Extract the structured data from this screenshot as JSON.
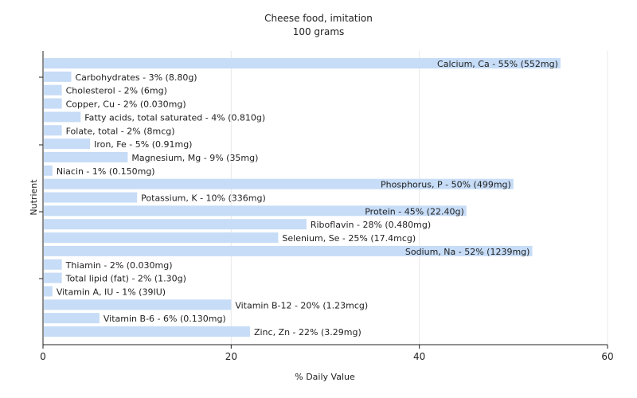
{
  "chart_data": {
    "type": "bar",
    "orientation": "horizontal",
    "title": "Cheese food, imitation",
    "subtitle": "100 grams",
    "xlabel": "% Daily Value",
    "ylabel": "Nutrient",
    "xlim": [
      0,
      60
    ],
    "xticks": [
      0,
      20,
      40,
      60
    ],
    "grid": true,
    "bar_color": "#c6dcf7",
    "categories": [
      "Calcium, Ca",
      "Carbohydrates",
      "Cholesterol",
      "Copper, Cu",
      "Fatty acids, total saturated",
      "Folate, total",
      "Iron, Fe",
      "Magnesium, Mg",
      "Niacin",
      "Phosphorus, P",
      "Potassium, K",
      "Protein",
      "Riboflavin",
      "Selenium, Se",
      "Sodium, Na",
      "Thiamin",
      "Total lipid (fat)",
      "Vitamin A, IU",
      "Vitamin B-12",
      "Vitamin B-6",
      "Zinc, Zn"
    ],
    "values": [
      55,
      3,
      2,
      2,
      4,
      2,
      5,
      9,
      1,
      50,
      10,
      45,
      28,
      25,
      52,
      2,
      2,
      1,
      20,
      6,
      22
    ],
    "labels": [
      "Calcium, Ca - 55% (552mg)",
      "Carbohydrates - 3% (8.80g)",
      "Cholesterol - 2% (6mg)",
      "Copper, Cu - 2% (0.030mg)",
      "Fatty acids, total saturated - 4% (0.810g)",
      "Folate, total - 2% (8mcg)",
      "Iron, Fe - 5% (0.91mg)",
      "Magnesium, Mg - 9% (35mg)",
      "Niacin - 1% (0.150mg)",
      "Phosphorus, P - 50% (499mg)",
      "Potassium, K - 10% (336mg)",
      "Protein - 45% (22.40g)",
      "Riboflavin - 28% (0.480mg)",
      "Selenium, Se - 25% (17.4mcg)",
      "Sodium, Na - 52% (1239mg)",
      "Thiamin - 2% (0.030mg)",
      "Total lipid (fat) - 2% (1.30g)",
      "Vitamin A, IU - 1% (39IU)",
      "Vitamin B-12 - 20% (1.23mcg)",
      "Vitamin B-6 - 6% (0.130mg)",
      "Zinc, Zn - 22% (3.29mg)"
    ]
  }
}
